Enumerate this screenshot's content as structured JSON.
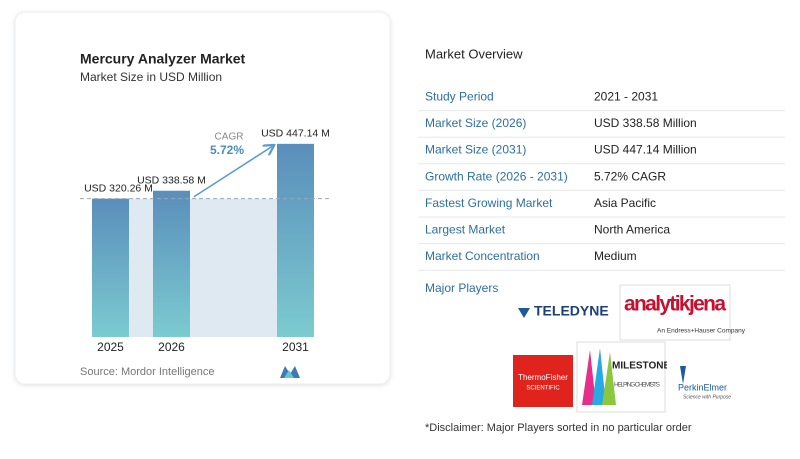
{
  "chart_data": {
    "type": "bar",
    "title": "Mercury Analyzer Market",
    "subtitle": "Market Size in USD Million",
    "categories": [
      "2025",
      "2026",
      "2031"
    ],
    "values": [
      320.26,
      338.58,
      447.14
    ],
    "value_labels": [
      "USD 320.26 M",
      "USD 338.58 M",
      "USD 447.14 M"
    ],
    "cagr_label": "CAGR",
    "cagr": "5.72%",
    "source": "Source: Mordor Intelligence",
    "color_top": "#5a8ebb",
    "color_bottom": "#7ccbd0"
  },
  "overview": {
    "title": "Market Overview",
    "rows": [
      [
        "Study Period",
        "2021 - 2031"
      ],
      [
        "Market Size (2026)",
        "USD 338.58 Million"
      ],
      [
        "Market Size (2031)",
        "USD 447.14 Million"
      ],
      [
        "Growth Rate (2026 - 2031)",
        "5.72% CAGR"
      ],
      [
        "Fastest Growing Market",
        "Asia Pacific"
      ],
      [
        "Largest Market",
        "North America"
      ],
      [
        "Market Concentration",
        "Medium"
      ]
    ]
  },
  "players": {
    "title": "Major Players",
    "logos": [
      [
        "TELEDYNE"
      ],
      [
        "analytikjena",
        "An Endress+Hauser Company"
      ],
      [
        "ThermoFisher",
        "SCIENTIFIC"
      ],
      [
        "MILESTONE",
        "HELPING CHEMISTS"
      ],
      [
        "PerkinElmer",
        "Science with Purpose"
      ]
    ]
  },
  "disclaimer": "*Disclaimer: Major Players sorted in no particular order"
}
